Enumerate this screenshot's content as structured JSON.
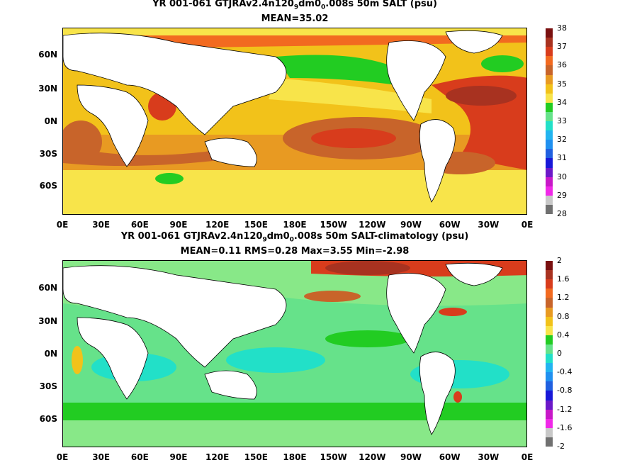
{
  "panel_top": {
    "title": "YR 001-061 GTJRAv2.4n120",
    "title_sub1": "9",
    "title_mid": "dm0",
    "title_sub2": "0",
    "title_end": ".008s 50m SALT (psu)",
    "subtitle": "MEAN=35.02",
    "colorbar_labels": [
      "38",
      "37",
      "36",
      "35",
      "34",
      "33",
      "32",
      "31",
      "30",
      "29",
      "28"
    ],
    "colorbar_colors": [
      "#7a1010",
      "#a83220",
      "#d83c1c",
      "#f26a20",
      "#c8642a",
      "#e89a22",
      "#f2c21a",
      "#f8e44a",
      "#22cc22",
      "#66e28a",
      "#22e0c8",
      "#22b4f0",
      "#2090f0",
      "#2060e0",
      "#1818d8",
      "#6c18c8",
      "#c818c8",
      "#f028e8",
      "#c8c8c8",
      "#707070"
    ]
  },
  "panel_bottom": {
    "title": "YR 001-061 GTJRAv2.4n120",
    "title_sub1": "9",
    "title_mid": "dm0",
    "title_sub2": "0",
    "title_end": ".008s 50m SALT-climatology (psu)",
    "subtitle": "MEAN=0.11   RMS=0.28   Max=3.55   Min=-2.98",
    "colorbar_labels": [
      "2",
      "1.6",
      "1.2",
      "0.8",
      "0.4",
      "0",
      "-0.4",
      "-0.8",
      "-1.2",
      "-1.6",
      "-2"
    ],
    "colorbar_colors": [
      "#7a1010",
      "#a83220",
      "#d83c1c",
      "#f26a20",
      "#c8642a",
      "#e89a22",
      "#f2c21a",
      "#f8e44a",
      "#22cc22",
      "#66e28a",
      "#22e0c8",
      "#22b4f0",
      "#2090f0",
      "#2060e0",
      "#1818d8",
      "#6c18c8",
      "#c818c8",
      "#f028e8",
      "#c8c8c8",
      "#707070"
    ]
  },
  "x_ticks": [
    "0E",
    "30E",
    "60E",
    "90E",
    "120E",
    "150E",
    "180E",
    "150W",
    "120W",
    "90W",
    "60W",
    "30W",
    "0E"
  ],
  "y_ticks": [
    "60N",
    "30N",
    "0N",
    "30S",
    "60S"
  ],
  "colors": {
    "land": "#ffffff",
    "ocean_top_base": "#f2c21a",
    "ocean_bottom_base": "#88e888"
  }
}
